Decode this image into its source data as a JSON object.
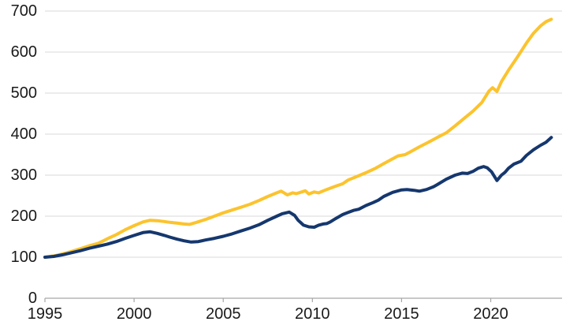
{
  "chart_data": {
    "type": "line",
    "title": "",
    "xlabel": "",
    "ylabel": "",
    "xlim": [
      1995,
      2024
    ],
    "ylim": [
      0,
      700
    ],
    "xticks": [
      1995,
      2000,
      2005,
      2010,
      2015,
      2020
    ],
    "yticks": [
      0,
      100,
      200,
      300,
      400,
      500,
      600,
      700
    ],
    "grid": "horizontal",
    "legend": "none",
    "colors": {
      "gold_series": "#FCC32D",
      "navy_series": "#15376E",
      "gridline": "#D9D9D9",
      "axis_line": "#A6A6A6",
      "tick_text": "#1A1A1A"
    },
    "series": [
      {
        "name": "gold",
        "color_key": "gold_series",
        "points": [
          [
            1995,
            100
          ],
          [
            1995.5,
            103
          ],
          [
            1996,
            108
          ],
          [
            1996.5,
            114
          ],
          [
            1997,
            121
          ],
          [
            1997.5,
            128
          ],
          [
            1998,
            134
          ],
          [
            1998.5,
            145
          ],
          [
            1999,
            155
          ],
          [
            1999.5,
            167
          ],
          [
            2000,
            177
          ],
          [
            2000.5,
            186
          ],
          [
            2000.9,
            190
          ],
          [
            2001.3,
            189
          ],
          [
            2001.7,
            187
          ],
          [
            2002,
            185
          ],
          [
            2002.4,
            183
          ],
          [
            2002.8,
            181
          ],
          [
            2003.1,
            180
          ],
          [
            2003.5,
            185
          ],
          [
            2004,
            192
          ],
          [
            2004.5,
            200
          ],
          [
            2005,
            208
          ],
          [
            2005.5,
            215
          ],
          [
            2006,
            222
          ],
          [
            2006.5,
            229
          ],
          [
            2007,
            238
          ],
          [
            2007.5,
            248
          ],
          [
            2008,
            257
          ],
          [
            2008.25,
            261
          ],
          [
            2008.6,
            252
          ],
          [
            2008.9,
            257
          ],
          [
            2009.1,
            255
          ],
          [
            2009.4,
            259
          ],
          [
            2009.6,
            262
          ],
          [
            2009.8,
            254
          ],
          [
            2010.1,
            259
          ],
          [
            2010.35,
            257
          ],
          [
            2010.8,
            265
          ],
          [
            2011.3,
            273
          ],
          [
            2011.7,
            279
          ],
          [
            2012,
            288
          ],
          [
            2012.5,
            297
          ],
          [
            2013,
            306
          ],
          [
            2013.5,
            316
          ],
          [
            2014,
            328
          ],
          [
            2014.5,
            340
          ],
          [
            2014.8,
            347
          ],
          [
            2015.2,
            350
          ],
          [
            2015.5,
            357
          ],
          [
            2016,
            369
          ],
          [
            2016.5,
            380
          ],
          [
            2017,
            392
          ],
          [
            2017.5,
            403
          ],
          [
            2018,
            420
          ],
          [
            2018.5,
            438
          ],
          [
            2019,
            456
          ],
          [
            2019.5,
            477
          ],
          [
            2019.9,
            505
          ],
          [
            2020.1,
            513
          ],
          [
            2020.35,
            504
          ],
          [
            2020.6,
            528
          ],
          [
            2021,
            556
          ],
          [
            2021.5,
            588
          ],
          [
            2022,
            622
          ],
          [
            2022.4,
            646
          ],
          [
            2022.8,
            664
          ],
          [
            2023.1,
            674
          ],
          [
            2023.4,
            680
          ]
        ]
      },
      {
        "name": "navy",
        "color_key": "navy_series",
        "points": [
          [
            1995,
            100
          ],
          [
            1995.5,
            102
          ],
          [
            1996,
            106
          ],
          [
            1996.5,
            111
          ],
          [
            1997,
            116
          ],
          [
            1997.5,
            122
          ],
          [
            1998,
            127
          ],
          [
            1998.5,
            132
          ],
          [
            1999,
            138
          ],
          [
            1999.5,
            146
          ],
          [
            2000,
            153
          ],
          [
            2000.5,
            160
          ],
          [
            2000.9,
            162
          ],
          [
            2001.3,
            158
          ],
          [
            2001.7,
            153
          ],
          [
            2002,
            149
          ],
          [
            2002.4,
            144
          ],
          [
            2002.8,
            140
          ],
          [
            2003.2,
            137
          ],
          [
            2003.6,
            138
          ],
          [
            2004,
            142
          ],
          [
            2004.5,
            146
          ],
          [
            2005,
            151
          ],
          [
            2005.5,
            157
          ],
          [
            2006,
            164
          ],
          [
            2006.5,
            171
          ],
          [
            2007,
            179
          ],
          [
            2007.5,
            190
          ],
          [
            2008,
            200
          ],
          [
            2008.3,
            206
          ],
          [
            2008.7,
            210
          ],
          [
            2009,
            202
          ],
          [
            2009.2,
            190
          ],
          [
            2009.5,
            178
          ],
          [
            2009.8,
            174
          ],
          [
            2010.1,
            173
          ],
          [
            2010.35,
            178
          ],
          [
            2010.6,
            181
          ],
          [
            2010.8,
            182
          ],
          [
            2011,
            186
          ],
          [
            2011.3,
            194
          ],
          [
            2011.7,
            204
          ],
          [
            2012,
            209
          ],
          [
            2012.3,
            214
          ],
          [
            2012.6,
            217
          ],
          [
            2013,
            226
          ],
          [
            2013.4,
            233
          ],
          [
            2013.7,
            239
          ],
          [
            2014,
            248
          ],
          [
            2014.5,
            258
          ],
          [
            2015,
            264
          ],
          [
            2015.3,
            265
          ],
          [
            2015.7,
            263
          ],
          [
            2016,
            261
          ],
          [
            2016.4,
            265
          ],
          [
            2016.8,
            272
          ],
          [
            2017,
            277
          ],
          [
            2017.5,
            290
          ],
          [
            2018,
            300
          ],
          [
            2018.4,
            305
          ],
          [
            2018.7,
            304
          ],
          [
            2019,
            309
          ],
          [
            2019.3,
            317
          ],
          [
            2019.6,
            321
          ],
          [
            2019.8,
            318
          ],
          [
            2020.05,
            308
          ],
          [
            2020.35,
            287
          ],
          [
            2020.6,
            300
          ],
          [
            2020.8,
            307
          ],
          [
            2021,
            317
          ],
          [
            2021.3,
            327
          ],
          [
            2021.7,
            334
          ],
          [
            2022,
            348
          ],
          [
            2022.4,
            362
          ],
          [
            2022.8,
            373
          ],
          [
            2023.1,
            380
          ],
          [
            2023.4,
            392
          ]
        ]
      }
    ]
  }
}
